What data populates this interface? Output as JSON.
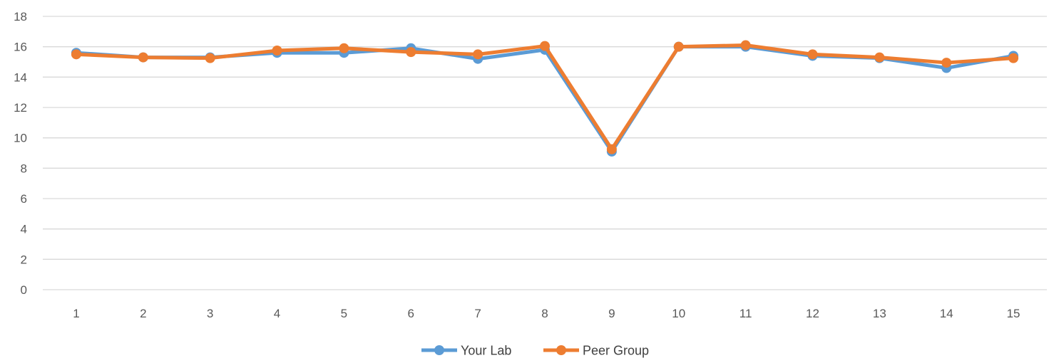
{
  "chart_data": {
    "type": "line",
    "title": "",
    "xlabel": "",
    "ylabel": "",
    "x": [
      1,
      2,
      3,
      4,
      5,
      6,
      7,
      8,
      9,
      10,
      11,
      12,
      13,
      14,
      15
    ],
    "ylim": [
      0,
      18
    ],
    "yticks": [
      0,
      2,
      4,
      6,
      8,
      10,
      12,
      14,
      16,
      18
    ],
    "grid": true,
    "legend_position": "bottom",
    "series": [
      {
        "name": "Your Lab",
        "color": "#5B9BD5",
        "values": [
          15.6,
          15.3,
          15.3,
          15.6,
          15.6,
          15.9,
          15.2,
          15.8,
          9.1,
          16.0,
          16.0,
          15.4,
          15.25,
          14.6,
          15.4
        ]
      },
      {
        "name": "Peer Group",
        "color": "#ED7D31",
        "values": [
          15.5,
          15.3,
          15.25,
          15.75,
          15.9,
          15.65,
          15.5,
          16.05,
          9.25,
          16.0,
          16.1,
          15.5,
          15.3,
          14.95,
          15.25
        ]
      }
    ]
  }
}
